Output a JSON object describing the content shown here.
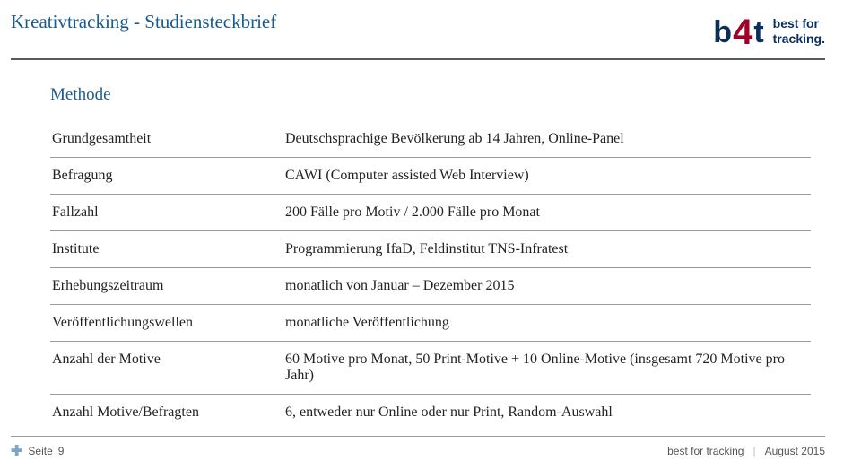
{
  "header": {
    "title": "Kreativtracking - Studiensteckbrief",
    "logo": {
      "b": "b",
      "four": "4",
      "t": "t",
      "tagline": "best for\ntracking."
    }
  },
  "section_heading": "Methode",
  "rows": [
    {
      "key": "Grundgesamtheit",
      "val": "Deutschsprachige Bevölkerung ab 14 Jahren, Online-Panel"
    },
    {
      "key": "Befragung",
      "val": "CAWI (Computer assisted Web Interview)"
    },
    {
      "key": "Fallzahl",
      "val": "200 Fälle pro Motiv / 2.000 Fälle pro Monat"
    },
    {
      "key": "Institute",
      "val": "Programmierung IfaD, Feldinstitut TNS-Infratest"
    },
    {
      "key": "Erhebungszeitraum",
      "val": "monatlich von Januar – Dezember 2015"
    },
    {
      "key": "Veröffentlichungswellen",
      "val": "monatliche Veröffentlichung"
    },
    {
      "key": "Anzahl der Motive",
      "val": "60 Motive pro Monat, 50 Print-Motive + 10 Online-Motive (insgesamt 720 Motive pro Jahr)"
    },
    {
      "key": "Anzahl Motive/Befragten",
      "val": "6, entweder nur Online oder nur Print, Random-Auswahl"
    }
  ],
  "footer": {
    "page_label": "Seite",
    "page_number": "9",
    "brand": "best for tracking",
    "date": "August 2015"
  }
}
